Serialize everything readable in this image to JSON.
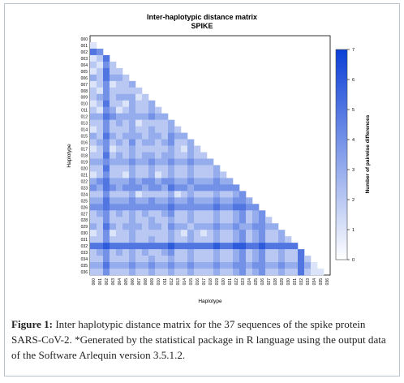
{
  "chart_data": {
    "type": "heatmap",
    "title": "Inter-haplotypic distance matrix",
    "subtitle": "SPIKE",
    "xlabel": "Haplotype",
    "ylabel": "Haplotype",
    "colorbar_label": "Number of pairwise differences",
    "colorbar_ticks": [
      0,
      1,
      2,
      3,
      4,
      5,
      6,
      7
    ],
    "value_range": [
      0,
      7
    ],
    "color_low": "#ffffff",
    "color_high": "#0b3fd6",
    "categories": [
      "000",
      "001",
      "002",
      "003",
      "004",
      "005",
      "006",
      "007",
      "008",
      "009",
      "010",
      "011",
      "012",
      "013",
      "014",
      "015",
      "016",
      "017",
      "018",
      "019",
      "020",
      "021",
      "022",
      "023",
      "024",
      "025",
      "026",
      "027",
      "028",
      "029",
      "030",
      "031",
      "032",
      "033",
      "034",
      "035",
      "036"
    ],
    "matrix_shape": "lower-triangular",
    "rows": [
      [],
      [
        1
      ],
      [
        5,
        4
      ],
      [
        1,
        2,
        5
      ],
      [
        2,
        1,
        4,
        2
      ],
      [
        1,
        2,
        5,
        2,
        2
      ],
      [
        3,
        2,
        5,
        3,
        3,
        2
      ],
      [
        1,
        2,
        4,
        1,
        2,
        2,
        3
      ],
      [
        2,
        1,
        4,
        2,
        2,
        2,
        2,
        2
      ],
      [
        2,
        3,
        4,
        2,
        3,
        3,
        3,
        1,
        2
      ],
      [
        1,
        2,
        5,
        2,
        2,
        1,
        3,
        2,
        2,
        3
      ],
      [
        2,
        1,
        4,
        3,
        1,
        2,
        3,
        2,
        2,
        3,
        2
      ],
      [
        3,
        3,
        5,
        4,
        3,
        3,
        3,
        3,
        3,
        4,
        3,
        3
      ],
      [
        2,
        2,
        4,
        2,
        3,
        2,
        3,
        1,
        2,
        2,
        2,
        2,
        3
      ],
      [
        1,
        2,
        4,
        2,
        2,
        2,
        3,
        2,
        2,
        3,
        2,
        2,
        3,
        2
      ],
      [
        3,
        2,
        5,
        3,
        2,
        3,
        3,
        3,
        2,
        3,
        3,
        2,
        4,
        3,
        3
      ],
      [
        2,
        3,
        4,
        2,
        3,
        2,
        4,
        2,
        3,
        3,
        2,
        3,
        4,
        2,
        2,
        3
      ],
      [
        1,
        2,
        4,
        1,
        2,
        2,
        3,
        2,
        2,
        2,
        2,
        2,
        3,
        2,
        1,
        3,
        2
      ],
      [
        2,
        2,
        5,
        2,
        3,
        2,
        3,
        2,
        3,
        3,
        2,
        3,
        3,
        2,
        2,
        3,
        2,
        2
      ],
      [
        3,
        3,
        4,
        3,
        3,
        3,
        4,
        3,
        3,
        4,
        3,
        3,
        4,
        3,
        3,
        4,
        3,
        3,
        3
      ],
      [
        2,
        2,
        5,
        2,
        2,
        2,
        3,
        2,
        2,
        3,
        2,
        2,
        3,
        2,
        2,
        3,
        2,
        2,
        2,
        3
      ],
      [
        1,
        2,
        4,
        2,
        2,
        1,
        3,
        2,
        2,
        3,
        1,
        2,
        3,
        2,
        2,
        3,
        2,
        2,
        2,
        3,
        2
      ],
      [
        3,
        4,
        5,
        3,
        3,
        3,
        4,
        3,
        4,
        4,
        3,
        4,
        4,
        3,
        3,
        4,
        3,
        3,
        3,
        4,
        3,
        3
      ],
      [
        4,
        3,
        5,
        4,
        3,
        4,
        4,
        4,
        3,
        4,
        4,
        3,
        5,
        4,
        4,
        3,
        4,
        4,
        4,
        4,
        4,
        4,
        4
      ],
      [
        2,
        2,
        4,
        2,
        2,
        2,
        3,
        1,
        2,
        2,
        2,
        2,
        3,
        1,
        2,
        3,
        2,
        2,
        2,
        3,
        2,
        2,
        3,
        4
      ],
      [
        3,
        3,
        5,
        3,
        3,
        3,
        4,
        3,
        3,
        4,
        3,
        3,
        4,
        3,
        3,
        4,
        3,
        3,
        3,
        4,
        3,
        3,
        4,
        4,
        3
      ],
      [
        4,
        4,
        5,
        4,
        4,
        4,
        4,
        4,
        4,
        4,
        4,
        4,
        5,
        4,
        4,
        4,
        4,
        4,
        4,
        5,
        4,
        4,
        5,
        5,
        4,
        4
      ],
      [
        2,
        3,
        4,
        2,
        3,
        2,
        3,
        2,
        3,
        2,
        2,
        3,
        4,
        2,
        2,
        3,
        2,
        2,
        2,
        3,
        2,
        2,
        3,
        4,
        2,
        3,
        4
      ],
      [
        2,
        2,
        4,
        2,
        2,
        2,
        3,
        2,
        2,
        3,
        2,
        2,
        3,
        2,
        2,
        3,
        2,
        2,
        2,
        3,
        2,
        2,
        3,
        4,
        2,
        3,
        4,
        2
      ],
      [
        3,
        2,
        5,
        3,
        2,
        3,
        3,
        3,
        2,
        3,
        3,
        2,
        4,
        3,
        3,
        2,
        3,
        3,
        3,
        4,
        3,
        3,
        4,
        3,
        3,
        4,
        4,
        3,
        3
      ],
      [
        1,
        2,
        4,
        1,
        2,
        2,
        3,
        2,
        2,
        2,
        2,
        2,
        3,
        2,
        1,
        3,
        2,
        1,
        2,
        3,
        2,
        2,
        3,
        4,
        2,
        3,
        4,
        2,
        2,
        3
      ],
      [
        2,
        2,
        4,
        2,
        2,
        2,
        3,
        2,
        2,
        3,
        2,
        2,
        3,
        2,
        2,
        3,
        2,
        2,
        2,
        3,
        2,
        2,
        3,
        4,
        2,
        3,
        4,
        2,
        2,
        3,
        2
      ],
      [
        5,
        5,
        6,
        5,
        5,
        5,
        5,
        5,
        5,
        5,
        5,
        5,
        6,
        5,
        5,
        5,
        5,
        5,
        5,
        6,
        5,
        5,
        6,
        6,
        5,
        5,
        6,
        5,
        5,
        5,
        5,
        5
      ],
      [
        2,
        3,
        4,
        2,
        3,
        2,
        3,
        2,
        3,
        2,
        2,
        3,
        4,
        2,
        2,
        3,
        2,
        2,
        2,
        3,
        2,
        2,
        3,
        4,
        2,
        3,
        4,
        2,
        2,
        3,
        2,
        2,
        5
      ],
      [
        2,
        2,
        4,
        2,
        2,
        2,
        3,
        2,
        2,
        3,
        2,
        2,
        3,
        2,
        2,
        3,
        2,
        2,
        2,
        3,
        2,
        2,
        3,
        4,
        2,
        3,
        4,
        2,
        2,
        3,
        2,
        2,
        5,
        2
      ],
      [
        3,
        3,
        5,
        3,
        3,
        3,
        4,
        3,
        3,
        4,
        3,
        3,
        4,
        3,
        3,
        4,
        3,
        3,
        3,
        4,
        3,
        3,
        4,
        4,
        3,
        4,
        4,
        3,
        3,
        4,
        3,
        3,
        5,
        3,
        1
      ],
      [
        2,
        2,
        4,
        2,
        2,
        2,
        3,
        2,
        2,
        3,
        2,
        2,
        3,
        2,
        2,
        3,
        2,
        2,
        2,
        3,
        2,
        2,
        3,
        4,
        2,
        3,
        4,
        2,
        2,
        3,
        2,
        2,
        5,
        2,
        1,
        1
      ]
    ]
  },
  "caption": {
    "label": "Figure 1:",
    "text": " Inter haplotypic distance matrix for the 37 sequences of the spike protein SARS-CoV-2. *Generated by the statistical package in R language using the output data of the Software Arlequin version 3.5.1.2."
  }
}
